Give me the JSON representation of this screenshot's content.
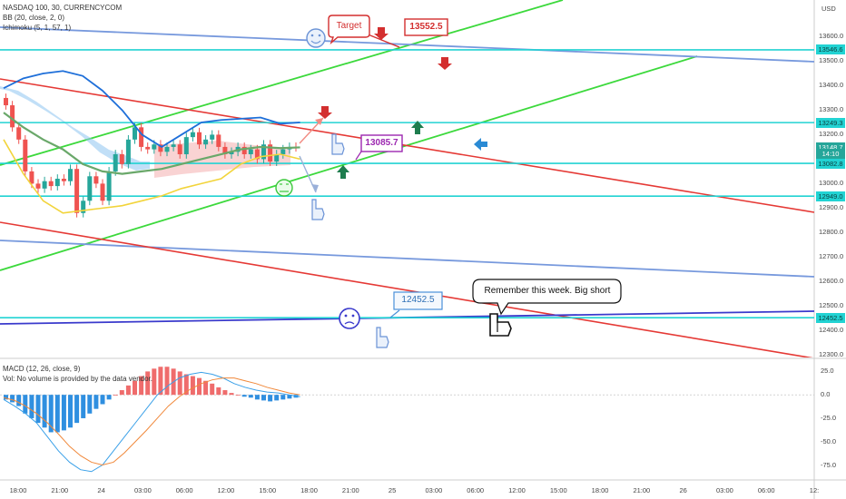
{
  "legend": {
    "symbol": "NASDAQ 100, 30, CURRENCYCOM",
    "bb": "BB (20, close, 2, 0)",
    "ichimoku": "Ichimoku (5, 1, 57, 1)",
    "macd": "MACD (12, 26, close, 9)",
    "vol": "Vol: No volume is provided by the data vendor."
  },
  "currency": "USD",
  "price_axis": {
    "ticks": [
      "13600.0",
      "13500.0",
      "13400.0",
      "13300.0",
      "13200.0",
      "13100.0",
      "13000.0",
      "12900.0",
      "12800.0",
      "12700.0",
      "12600.0",
      "12500.0",
      "12400.0",
      "12300.0"
    ],
    "range": [
      12290,
      13750
    ]
  },
  "macd_axis": {
    "ticks": [
      "25.0",
      "0.0",
      "-25.0",
      "-50.0",
      "-75.0"
    ],
    "range": [
      -90,
      38
    ]
  },
  "time_axis": [
    "18:00",
    "21:00",
    "24",
    "03:00",
    "06:00",
    "12:00",
    "15:00",
    "18:00",
    "21:00",
    "25",
    "03:00",
    "06:00",
    "12:00",
    "15:00",
    "18:00",
    "21:00",
    "26",
    "03:00",
    "06:00",
    "12:"
  ],
  "price_labels": [
    {
      "text": "13546.6",
      "kind": "level",
      "color": "#22d3d3"
    },
    {
      "text": "13249.3",
      "kind": "level",
      "color": "#22d3d3"
    },
    {
      "text": "13148.7",
      "kind": "last",
      "color": "#26a69a"
    },
    {
      "text": "14:10",
      "kind": "timer",
      "color": "#26a69a"
    },
    {
      "text": "13082.8",
      "kind": "level",
      "color": "#22d3d3"
    },
    {
      "text": "12949.0",
      "kind": "level",
      "color": "#22d3d3"
    },
    {
      "text": "12452.5",
      "kind": "level",
      "color": "#22d3d3"
    }
  ],
  "annotations": {
    "target": "Target",
    "price1": "13552.5",
    "price2": "13085.7",
    "price3": "12452.5",
    "note": "Remember this week. Big short"
  },
  "colors": {
    "level": "#22d3d3",
    "up": "#26a69a",
    "down": "#ef5350",
    "green_line": "#3cd93c",
    "red_line": "#e53935",
    "blue_line": "#7799dd"
  },
  "chart_data": {
    "type": "candlestick",
    "title": "NASDAQ 100, 30, CURRENCYCOM",
    "price_ylim": [
      12290,
      13750
    ],
    "horizontal_levels": [
      13546.6,
      13249.3,
      13082.8,
      12949.0,
      12452.5
    ],
    "last_price": 13148.7,
    "candles_close": [
      13320,
      13230,
      13180,
      13050,
      13000,
      12980,
      13010,
      12990,
      13020,
      13010,
      13060,
      12880,
      12930,
      13030,
      13000,
      12930,
      13050,
      13120,
      13080,
      13180,
      13230,
      13150,
      13140,
      13160,
      13130,
      13150,
      13160,
      13120,
      13190,
      13210,
      13160,
      13180,
      13200,
      13150,
      13120,
      13130,
      13150,
      13120,
      13140,
      13100,
      13160,
      13090,
      13120,
      13140,
      13150,
      13148.7
    ],
    "bollinger_upper": [
      13390,
      13430,
      13450,
      13460,
      13440,
      13380,
      13300,
      13200,
      13150,
      13200,
      13250,
      13260,
      13265,
      13270,
      13245,
      13250
    ],
    "bollinger_lower": [
      13180,
      13040,
      12930,
      12880,
      12890,
      12900,
      12910,
      12930,
      12950,
      12980,
      13000,
      13020,
      13080,
      13110,
      13120,
      13100
    ],
    "bollinger_basis": [
      13290,
      13230,
      13180,
      13140,
      13080,
      13050,
      13040,
      13050,
      13060,
      13080,
      13100,
      13120,
      13140,
      13150,
      13145,
      13148
    ],
    "macd_histogram": [
      -5,
      -8,
      -12,
      -20,
      -25,
      -30,
      -35,
      -40,
      -40,
      -38,
      -35,
      -30,
      -25,
      -20,
      -15,
      -10,
      -5,
      0,
      5,
      10,
      15,
      20,
      25,
      28,
      30,
      30,
      28,
      25,
      22,
      20,
      18,
      15,
      12,
      8,
      5,
      2,
      0,
      -2,
      -3,
      -5,
      -6,
      -7,
      -6,
      -5,
      -4,
      -3
    ],
    "macd_line": [
      -5,
      -12,
      -20,
      -30,
      -45,
      -60,
      -72,
      -80,
      -82,
      -75,
      -60,
      -45,
      -30,
      -15,
      0,
      10,
      18,
      22,
      24,
      22,
      18,
      12,
      8,
      5,
      3,
      2,
      0,
      -2
    ],
    "macd_signal": [
      -3,
      -6,
      -12,
      -20,
      -30,
      -42,
      -55,
      -65,
      -72,
      -75,
      -72,
      -62,
      -50,
      -38,
      -25,
      -12,
      -2,
      6,
      12,
      16,
      18,
      18,
      15,
      12,
      8,
      5,
      2,
      0
    ]
  }
}
